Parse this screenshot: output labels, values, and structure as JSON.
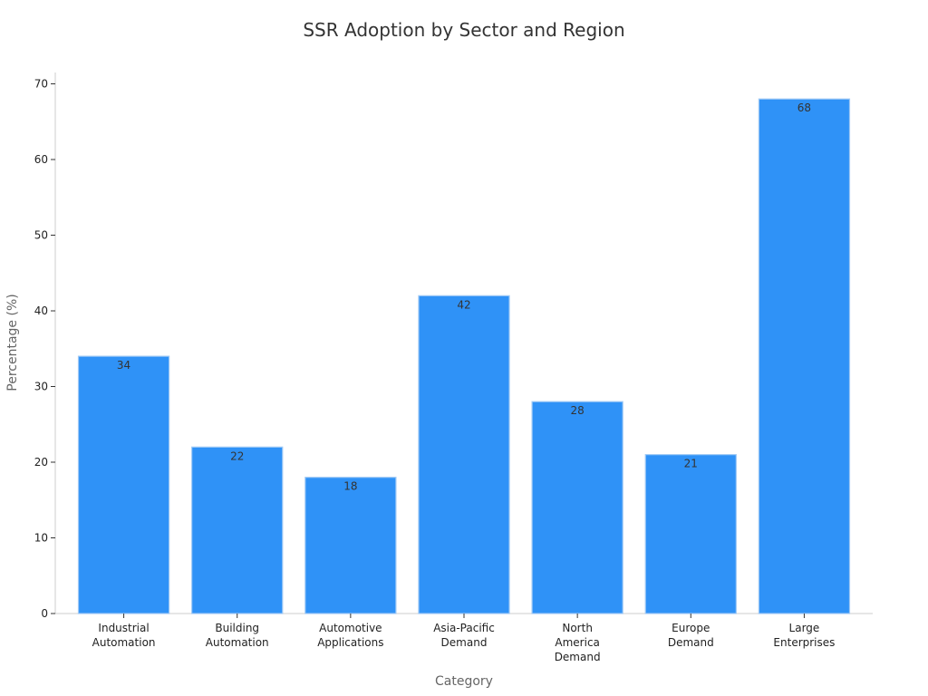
{
  "chart_data": {
    "type": "bar",
    "title": "SSR Adoption by Sector and Region",
    "xlabel": "Category",
    "ylabel": "Percentage (%)",
    "ylim": [
      0,
      71.5
    ],
    "yticks": [
      0,
      10,
      20,
      30,
      40,
      50,
      60,
      70
    ],
    "categories": [
      [
        "Industrial",
        "Automation"
      ],
      [
        "Building",
        "Automation"
      ],
      [
        "Automotive",
        "Applications"
      ],
      [
        "Asia-Pacific",
        "Demand"
      ],
      [
        "North",
        "America",
        "Demand"
      ],
      [
        "Europe",
        "Demand"
      ],
      [
        "Large",
        "Enterprises"
      ]
    ],
    "values": [
      34,
      22,
      18,
      42,
      28,
      21,
      68
    ],
    "bar_color": "#2f92f7",
    "bar_edge_color": "#9fc9f5",
    "grid": false,
    "legend": "none"
  }
}
